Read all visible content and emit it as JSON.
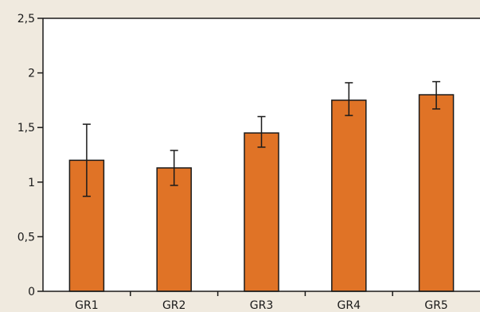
{
  "chart_data": {
    "type": "bar",
    "categories": [
      "GR1",
      "GR2",
      "GR3",
      "GR4",
      "GR5"
    ],
    "values": [
      1.2,
      1.13,
      1.45,
      1.75,
      1.8
    ],
    "error_low": [
      0.87,
      0.97,
      1.32,
      1.61,
      1.67
    ],
    "error_high": [
      1.53,
      1.29,
      1.6,
      1.91,
      1.92
    ],
    "ylim": [
      0,
      2.5
    ],
    "yticks": [
      0,
      0.5,
      1,
      1.5,
      2,
      2.5
    ],
    "ytick_labels": [
      "0",
      "0,5",
      "1",
      "1,5",
      "2",
      "2,5"
    ],
    "title": "",
    "xlabel": "",
    "ylabel": "",
    "grid": false,
    "legend": "none",
    "colors": {
      "background": "#f0eadf",
      "plot_area": "#ffffff",
      "bar_fill": "#e07326",
      "bar_stroke": "#1a1a1a",
      "axis": "#1a1a1a"
    }
  }
}
